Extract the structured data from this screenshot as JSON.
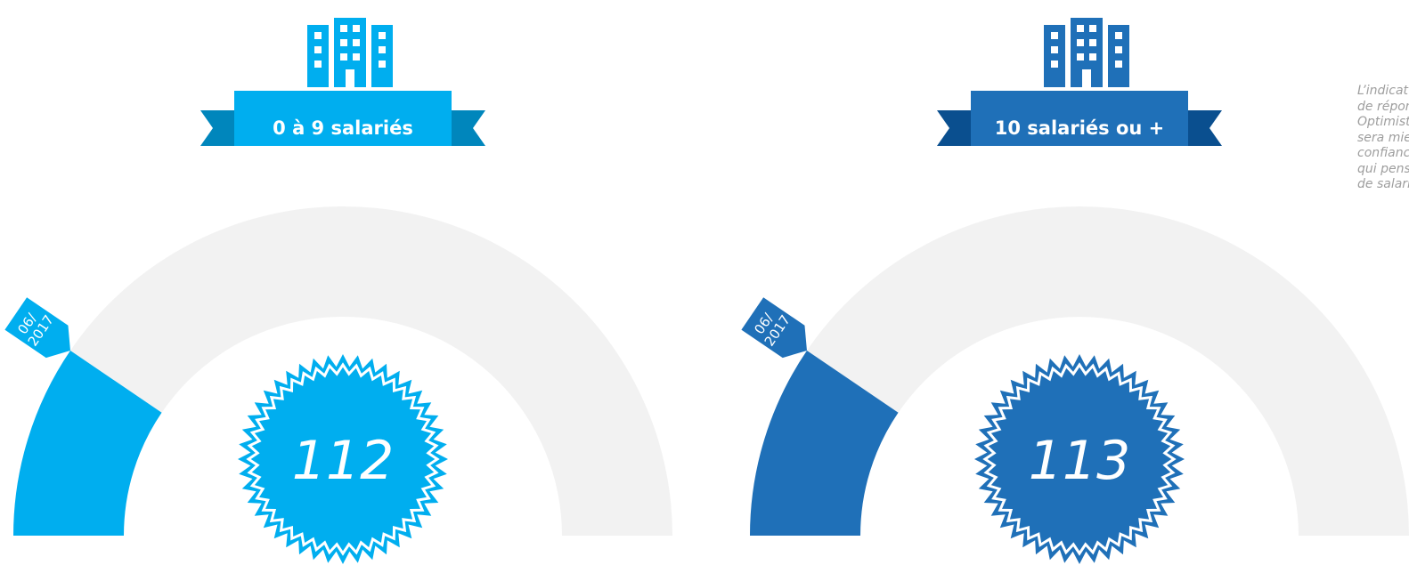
{
  "chart_data": [
    {
      "type": "gauge",
      "category": "0 à 9 salariés",
      "value": 112,
      "pointer_label": [
        "06/",
        "2017"
      ],
      "fill_fraction": 0.19,
      "color": "#00AEEF",
      "ribbon_dark": "#0086BC"
    },
    {
      "type": "gauge",
      "category": "10 salariés ou +",
      "value": 113,
      "pointer_label": [
        "06/",
        "2017"
      ],
      "fill_fraction": 0.19,
      "color": "#1F70B8",
      "ribbon_dark": "#0A4F8F"
    }
  ],
  "colors": {
    "track": "#F2F2F2",
    "white": "#FFFFFF",
    "note": "#9E9E9E"
  },
  "icons": [
    "building-icon",
    "starburst-badge"
  ],
  "note_lines": [
    "L’indicat",
    "de répon",
    "Optimist",
    "sera mie",
    "confianc",
    "qui pens",
    "de salari"
  ]
}
